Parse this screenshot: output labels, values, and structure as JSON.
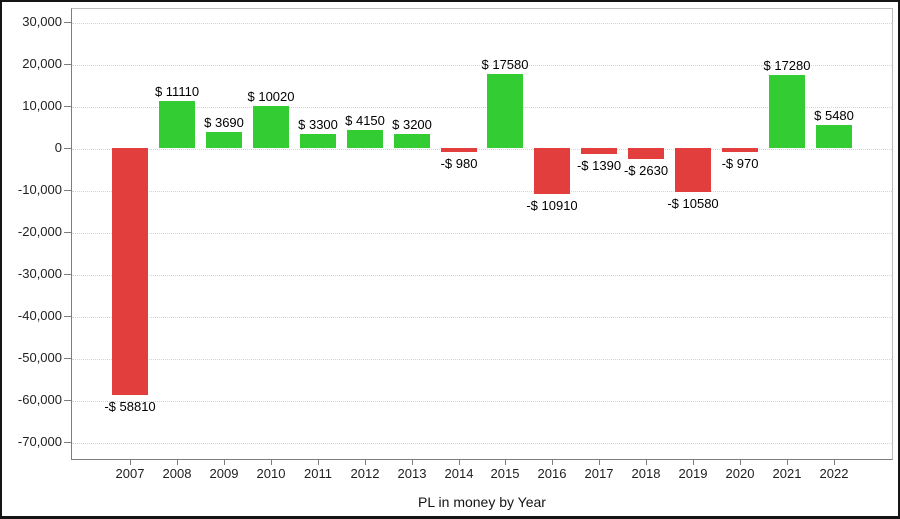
{
  "chart_data": {
    "type": "bar",
    "title": "PL in money by Year",
    "xlabel": "PL in money by Year",
    "ylabel": "",
    "legend": "none",
    "grid": "horizontal-dotted",
    "categories": [
      "2007",
      "2008",
      "2009",
      "2010",
      "2011",
      "2012",
      "2013",
      "2014",
      "2015",
      "2016",
      "2017",
      "2018",
      "2019",
      "2020",
      "2021",
      "2022"
    ],
    "values": [
      -58810,
      11110,
      3690,
      10020,
      3300,
      4150,
      3200,
      -980,
      17580,
      -10910,
      -1390,
      -2630,
      -10580,
      -970,
      17280,
      5480
    ],
    "bar_labels": [
      "-$ 58810",
      "$ 11110",
      "$ 3690",
      "$ 10020",
      "$ 3300",
      "$ 4150",
      "$ 3200",
      "-$ 980",
      "$ 17580",
      "-$ 10910",
      "-$ 1390",
      "-$ 2630",
      "-$ 10580",
      "-$ 970",
      "$ 17280",
      "$ 5480"
    ],
    "y_ticks": [
      30000,
      20000,
      10000,
      0,
      -10000,
      -20000,
      -30000,
      -40000,
      -50000,
      -60000,
      -70000
    ],
    "y_tick_labels": [
      "30,000",
      "20,000",
      "10,000",
      "0",
      "-10,000",
      "-20,000",
      "-30,000",
      "-40,000",
      "-50,000",
      "-60,000",
      "-70,000"
    ],
    "ylim": [
      -74300,
      33300
    ],
    "colors": {
      "positive_bar": "#33cc33",
      "negative_bar": "#e23e3e",
      "gridline": "#d4d4d4",
      "axis_line": "#7d7d7d",
      "text": "#1f1f1f"
    }
  }
}
